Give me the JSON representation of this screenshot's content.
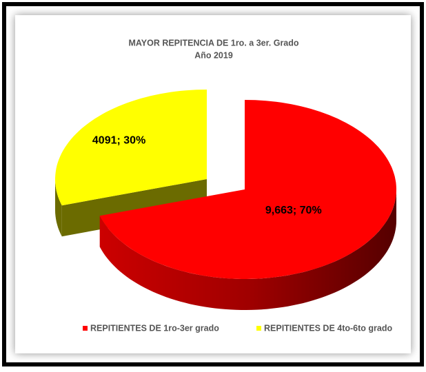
{
  "chart_data": {
    "type": "pie3d",
    "title": "MAYOR REPITENCIA DE 1ro. a 3er. Grado",
    "subtitle": "Año 2019",
    "categories": [
      "REPITIENTES DE 1ro-3er grado",
      "REPITIENTES DE 4to-6to grado"
    ],
    "values": [
      9663,
      4091
    ],
    "value_labels": [
      "9,663; 70%",
      "4091; 30%"
    ],
    "colors": [
      "#ff0000",
      "#ffff00"
    ],
    "legend": "bottom"
  }
}
